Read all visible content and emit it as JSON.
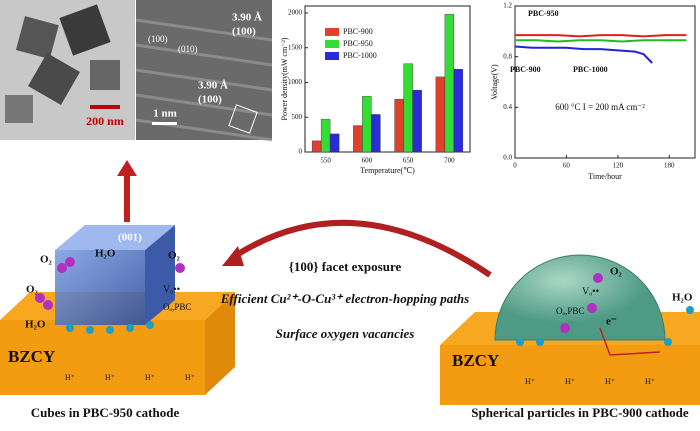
{
  "chart_data": [
    {
      "type": "bar",
      "ylabel": "Power density(mW cm⁻²)",
      "xlabel": "Temperature(℃)",
      "categories": [
        "550",
        "600",
        "650",
        "700"
      ],
      "series": [
        {
          "name": "PBC-900",
          "color": "#e0412a",
          "values": [
            160,
            380,
            760,
            1080
          ]
        },
        {
          "name": "PBC-950",
          "color": "#33dd33",
          "values": [
            470,
            800,
            1270,
            1980
          ]
        },
        {
          "name": "PBC-1000",
          "color": "#2b2bd9",
          "values": [
            260,
            540,
            890,
            1190
          ]
        }
      ],
      "ylim": [
        0,
        2100
      ],
      "yticks": [
        0,
        500,
        1000,
        1500,
        2000
      ],
      "legend": "upper left"
    },
    {
      "type": "line",
      "ylabel": "Voltage(V)",
      "xlabel": "Time/hour",
      "annotation": "600 °C  I = 200 mA cm⁻²",
      "series": [
        {
          "name": "PBC-900",
          "color": "#e02020",
          "x": [
            0,
            25,
            50,
            75,
            100,
            125,
            150,
            175,
            200
          ],
          "values": [
            0.97,
            0.97,
            0.97,
            0.96,
            0.97,
            0.97,
            0.96,
            0.97,
            0.97
          ]
        },
        {
          "name": "PBC-950",
          "color": "#22bb22",
          "x": [
            0,
            25,
            50,
            75,
            100,
            125,
            150,
            175,
            200
          ],
          "values": [
            0.93,
            0.93,
            0.92,
            0.93,
            0.93,
            0.92,
            0.93,
            0.93,
            0.93
          ]
        },
        {
          "name": "PBC-1000",
          "color": "#2222dd",
          "x": [
            0,
            20,
            40,
            60,
            80,
            100,
            120,
            140,
            150,
            160
          ],
          "values": [
            0.88,
            0.87,
            0.87,
            0.87,
            0.86,
            0.86,
            0.85,
            0.84,
            0.82,
            0.75
          ]
        }
      ],
      "xlim": [
        0,
        210
      ],
      "xticks": [
        0,
        60,
        120,
        180
      ],
      "ylim": [
        0,
        1.2
      ],
      "yticks": [
        {
          "value": 0,
          "label": "0.0"
        },
        0.4,
        0.8,
        1.2
      ]
    }
  ],
  "micrographs": {
    "tem_scale": "200 nm",
    "hrtem_scale": "1 nm",
    "spacing_1": "3.90 Å",
    "plane_1": "(100)",
    "spacing_2": "3.90 Å",
    "plane_2": "(100)",
    "direction_1": "(100)",
    "direction_2": "(010)"
  },
  "diagram": {
    "mechanisms": [
      "{100} facet exposure",
      "Efficient Cu²⁺-O-Cu³⁺ electron-hopping paths",
      "Surface oxygen vacancies"
    ],
    "left": {
      "substrate": "BZCY",
      "caption": "Cubes in PBC-950 cathode",
      "facet": "(001)",
      "o2": "O₂",
      "h2o": "H₂O",
      "vacancy": "Vₒ••",
      "lattice_o": "Oₒ,PBC"
    },
    "right": {
      "substrate": "BZCY",
      "caption": "Spherical particles in PBC-900 cathode",
      "o2": "O₂",
      "h2o": "H₂O",
      "vacancy": "Vₒ••",
      "lattice_o": "Oₒ,PBC",
      "electron": "e⁻"
    },
    "proton": "H⁺"
  }
}
